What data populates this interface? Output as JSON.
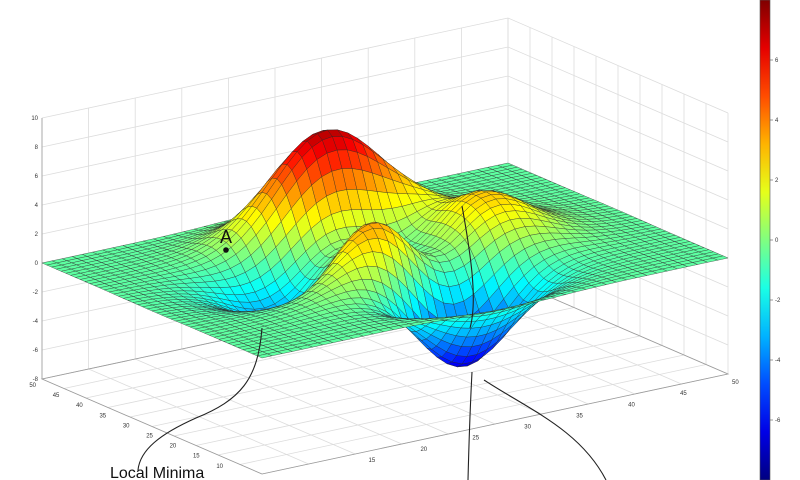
{
  "plot": {
    "type": "surface",
    "colormap": "jet",
    "grid": true,
    "zlim": [
      -8,
      10
    ],
    "z_ticks": [
      "10",
      "8",
      "6",
      "4",
      "2",
      "0",
      "-2",
      "-4",
      "-6",
      "-8"
    ],
    "left_axis_ticks": [
      "50",
      "45",
      "40",
      "35",
      "30",
      "25",
      "20",
      "15",
      "10"
    ],
    "bottom_axis_ticks": [
      "15",
      "20",
      "25",
      "30",
      "35",
      "40",
      "45",
      "50"
    ],
    "colorbar": {
      "ticks": [
        "6",
        "4",
        "2",
        "0",
        "-2",
        "-4",
        "-6"
      ]
    }
  },
  "annotations": {
    "point_label": "A",
    "local_minima_label": "Local Minima"
  }
}
